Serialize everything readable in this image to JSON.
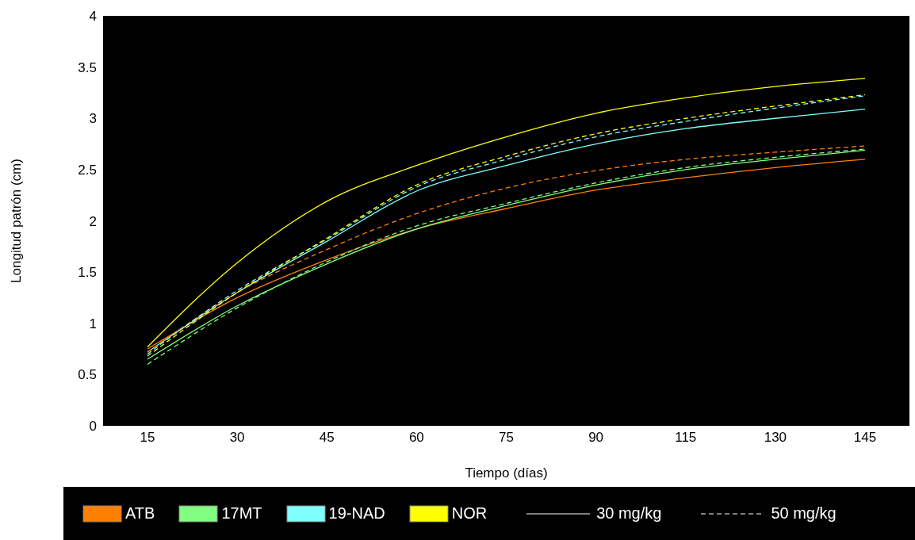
{
  "chart_data": {
    "type": "line",
    "xlabel": "Tiempo (días)",
    "ylabel": "Longitud patrón (cm)",
    "categories": [
      "15",
      "30",
      "45",
      "60",
      "75",
      "90",
      "115",
      "130",
      "145"
    ],
    "ylim": [
      0,
      4
    ],
    "yticks": [
      0,
      0.5,
      1,
      1.5,
      2,
      2.5,
      3,
      3.5,
      4
    ],
    "grid": false,
    "legend": "bottom",
    "marker": "none",
    "annotations": [
      "30 mg/kg",
      "50 mg/kg"
    ],
    "series": [
      {
        "name": "ATB",
        "color": "#ff8000",
        "line_style": "solid",
        "values": [
          0.75,
          1.25,
          1.62,
          1.92,
          2.12,
          2.3,
          2.42,
          2.52,
          2.6
        ]
      },
      {
        "name": "17MT",
        "color": "#80ff80",
        "line_style": "solid",
        "values": [
          0.65,
          1.17,
          1.58,
          1.92,
          2.15,
          2.35,
          2.5,
          2.6,
          2.69
        ]
      },
      {
        "name": "19-NAD",
        "color": "#80ffff",
        "line_style": "solid",
        "values": [
          0.72,
          1.3,
          1.8,
          2.29,
          2.54,
          2.75,
          2.9,
          3.0,
          3.09
        ]
      },
      {
        "name": "NOR",
        "color": "#ffff00",
        "line_style": "solid",
        "values": [
          0.77,
          1.59,
          2.19,
          2.54,
          2.82,
          3.05,
          3.2,
          3.31,
          3.39
        ]
      },
      {
        "color": "#ff8000",
        "line_style": "dashed",
        "values": [
          0.72,
          1.3,
          1.72,
          2.07,
          2.32,
          2.49,
          2.6,
          2.67,
          2.73
        ]
      },
      {
        "color": "#80ff80",
        "line_style": "dashed",
        "values": [
          0.6,
          1.15,
          1.6,
          1.95,
          2.17,
          2.37,
          2.52,
          2.62,
          2.7
        ]
      },
      {
        "color": "#80ffff",
        "line_style": "dashed",
        "values": [
          0.7,
          1.32,
          1.82,
          2.33,
          2.6,
          2.82,
          2.97,
          3.1,
          3.22
        ]
      },
      {
        "color": "#ffff00",
        "line_style": "dashed",
        "values": [
          0.68,
          1.3,
          1.83,
          2.35,
          2.63,
          2.85,
          3.0,
          3.12,
          3.23
        ]
      }
    ]
  }
}
